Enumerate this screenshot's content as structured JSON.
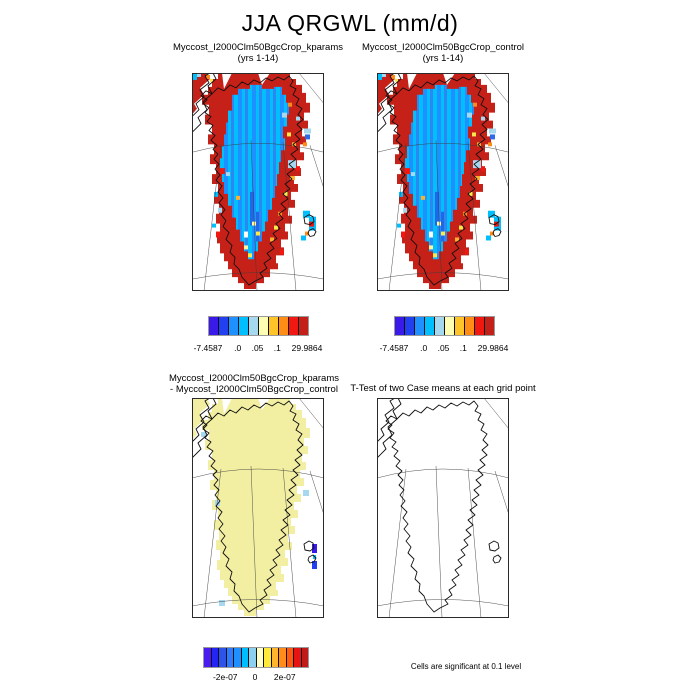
{
  "figure": {
    "title": "JJA QRGWL (mm/d)",
    "footnote": "Cells are significant at 0.1 level"
  },
  "panels": {
    "top_left": {
      "name": "Myccost_I2000Clm50BgcCrop_kparams",
      "years": "(yrs 1-14)"
    },
    "top_right": {
      "name": "Myccost_I2000Clm50BgcCrop_control",
      "years": "(yrs 1-14)"
    },
    "bottom_left": {
      "line1": "Myccost_I2000Clm50BgcCrop_kparams",
      "line2": "- Myccost_I2000Clm50BgcCrop_control"
    },
    "bottom_right": {
      "title": "T-Test of two Case means at each grid point"
    }
  },
  "colorbars": {
    "case": {
      "colors": [
        "#3A1AE8",
        "#2340F0",
        "#1E90FF",
        "#00BFFF",
        "#A6D8F0",
        "#FFFFB4",
        "#FFC428",
        "#FF8C14",
        "#F01810",
        "#C22018"
      ],
      "labels": [
        "-7.4587",
        ".0",
        ".05",
        ".1",
        "29.9864"
      ]
    },
    "diff": {
      "colors": [
        "#4A1CF0",
        "#2424F5",
        "#2E53E8",
        "#2E7BFF",
        "#1E90FF",
        "#00BFFF",
        "#8CD2F0",
        "#FFFFC8",
        "#FFE93B",
        "#FFB52E",
        "#FF8C1A",
        "#FF5A0F",
        "#E81414",
        "#C01A1A"
      ],
      "labels": [
        "-2e-07",
        "0",
        "2e-07"
      ]
    }
  },
  "map_colors": {
    "margin_red": "#C62119",
    "interior_blue_1": "#1E90FF",
    "interior_blue_2": "#00BFFF",
    "light_blue": "#A6D8F0",
    "diff_yellow": "#F2EFA2"
  },
  "chart_data": {
    "type": "heatmap",
    "subtype": "geographic map panels (Greenland, polar projection)",
    "variable": "QRGWL",
    "units": "mm/d",
    "season": "JJA",
    "panels": [
      {
        "title": "Myccost_I2000Clm50BgcCrop_kparams (yrs 1-14)",
        "role": "case mean",
        "colorbar": "case",
        "pattern": "red high values along ice-sheet margin and coast, dodger/deep-sky blue low values over interior, scattered light-blue/yellow/orange cells at the margin"
      },
      {
        "title": "Myccost_I2000Clm50BgcCrop_control (yrs 1-14)",
        "role": "case mean",
        "colorbar": "case",
        "pattern": "nearly identical to kparams panel"
      },
      {
        "title": "Myccost_I2000Clm50BgcCrop_kparams - Myccost_I2000Clm50BgcCrop_control",
        "role": "difference",
        "colorbar": "diff",
        "pattern": "near-zero pale-yellow difference over all of Greenland, few small light-blue cells and two dark-blue negative cells on southeast coastal islands"
      },
      {
        "title": "T-Test of two Case means at each grid point",
        "role": "significance mask",
        "pattern": "no shaded cells (outline only)"
      }
    ],
    "case_colorbar": {
      "n_colors": 10,
      "range": [
        -7.4587,
        29.9864
      ],
      "labeled_boundaries": [
        {
          "boundary_index": 0,
          "label": "-7.4587"
        },
        {
          "boundary_index": 3,
          "label": ".0"
        },
        {
          "boundary_index": 5,
          "label": ".05"
        },
        {
          "boundary_index": 7,
          "label": ".1"
        },
        {
          "boundary_index": 10,
          "label": "29.9864"
        }
      ]
    },
    "diff_colorbar": {
      "n_colors": 14,
      "labeled_boundaries": [
        {
          "boundary_index": 3,
          "label": "-2e-07"
        },
        {
          "boundary_index": 7,
          "label": "0"
        },
        {
          "boundary_index": 11,
          "label": "2e-07"
        }
      ]
    },
    "footnote": "Cells are significant at 0.1 level",
    "legend_position": "below each map pair / below difference map",
    "grid": "graticule lines over polar-projection map frames"
  }
}
